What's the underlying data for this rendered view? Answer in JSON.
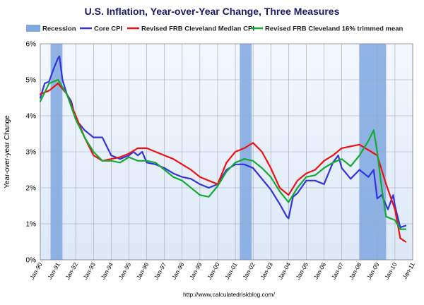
{
  "chart_data": {
    "type": "line",
    "title": "U.S. Inflation, Year-over-Year Change, Three Measures",
    "ylabel": "Year-over-year Change",
    "xlabel": "",
    "source": "http://www.calculatedriskblog.com/",
    "xlim": [
      1990.0,
      2011.0
    ],
    "ylim": [
      0,
      6
    ],
    "yticks": [
      {
        "v": 0,
        "label": "0%"
      },
      {
        "v": 1,
        "label": "1%"
      },
      {
        "v": 2,
        "label": "2%"
      },
      {
        "v": 3,
        "label": "3%"
      },
      {
        "v": 4,
        "label": "4%"
      },
      {
        "v": 5,
        "label": "5%"
      },
      {
        "v": 6,
        "label": "6%"
      }
    ],
    "xticks": [
      {
        "v": 1990,
        "label": "Jan-90"
      },
      {
        "v": 1991,
        "label": "Jan-91"
      },
      {
        "v": 1992,
        "label": "Jan-92"
      },
      {
        "v": 1993,
        "label": "Jan-93"
      },
      {
        "v": 1994,
        "label": "Jan-94"
      },
      {
        "v": 1995,
        "label": "Jan-95"
      },
      {
        "v": 1996,
        "label": "Jan-96"
      },
      {
        "v": 1997,
        "label": "Jan-97"
      },
      {
        "v": 1998,
        "label": "Jan-98"
      },
      {
        "v": 1999,
        "label": "Jan-99"
      },
      {
        "v": 2000,
        "label": "Jan-00"
      },
      {
        "v": 2001,
        "label": "Jan-01"
      },
      {
        "v": 2002,
        "label": "Jan-02"
      },
      {
        "v": 2003,
        "label": "Jan-03"
      },
      {
        "v": 2004,
        "label": "Jan-04"
      },
      {
        "v": 2005,
        "label": "Jan-05"
      },
      {
        "v": 2006,
        "label": "Jan-06"
      },
      {
        "v": 2007,
        "label": "Jan-07"
      },
      {
        "v": 2008,
        "label": "Jan-08"
      },
      {
        "v": 2009,
        "label": "Jan-09"
      },
      {
        "v": 2010,
        "label": "Jan-10"
      },
      {
        "v": 2011,
        "label": "Jan-11"
      }
    ],
    "grid": true,
    "legend_position": "top",
    "legend": [
      {
        "label": "Recession",
        "kind": "band",
        "color": "#7fa7e0"
      },
      {
        "label": "Core CPI",
        "kind": "line",
        "color": "#3333dd"
      },
      {
        "label": "Revised FRB Cleveland Median CPI",
        "kind": "line",
        "color": "#ee1111"
      },
      {
        "label": "Revised FRB Cleveland 16% trimmed mean",
        "kind": "line",
        "color": "#11aa33"
      }
    ],
    "recessions": [
      {
        "start": 1990.58,
        "end": 1991.25
      },
      {
        "start": 2001.25,
        "end": 2001.92
      },
      {
        "start": 2008.0,
        "end": 2009.5
      }
    ],
    "series": [
      {
        "name": "Core CPI",
        "color": "#3333dd",
        "x": [
          1990.0,
          1990.25,
          1990.5,
          1990.75,
          1991.0,
          1991.08,
          1991.25,
          1991.5,
          1991.75,
          1992.0,
          1992.5,
          1993.0,
          1993.5,
          1994.0,
          1994.5,
          1995.0,
          1995.25,
          1995.5,
          1995.75,
          1996.0,
          1996.5,
          1997.0,
          1997.5,
          1998.0,
          1998.5,
          1999.0,
          1999.5,
          2000.0,
          2000.5,
          2001.0,
          2001.5,
          2002.0,
          2002.5,
          2003.0,
          2003.5,
          2003.9,
          2004.0,
          2004.25,
          2004.5,
          2005.0,
          2005.5,
          2006.0,
          2006.5,
          2006.8,
          2007.0,
          2007.5,
          2008.0,
          2008.5,
          2008.8,
          2009.0,
          2009.25,
          2009.6,
          2009.9,
          2010.0,
          2010.3,
          2010.6
        ],
        "y": [
          4.5,
          4.9,
          4.95,
          5.3,
          5.6,
          5.65,
          5.0,
          4.6,
          4.4,
          3.9,
          3.6,
          3.4,
          3.4,
          2.9,
          2.8,
          2.9,
          3.0,
          2.9,
          3.0,
          2.7,
          2.65,
          2.55,
          2.4,
          2.3,
          2.25,
          2.1,
          2.0,
          2.1,
          2.5,
          2.65,
          2.65,
          2.55,
          2.25,
          1.95,
          1.55,
          1.2,
          1.15,
          1.75,
          1.85,
          2.2,
          2.2,
          2.1,
          2.7,
          2.9,
          2.55,
          2.25,
          2.5,
          2.3,
          2.5,
          1.7,
          1.8,
          1.4,
          1.8,
          1.5,
          0.9,
          0.95
        ]
      },
      {
        "name": "Revised FRB Cleveland Median CPI",
        "color": "#ee1111",
        "x": [
          1990.0,
          1990.5,
          1991.0,
          1991.5,
          1992.0,
          1992.5,
          1993.0,
          1993.5,
          1994.0,
          1994.5,
          1995.0,
          1995.5,
          1996.0,
          1996.5,
          1997.0,
          1997.5,
          1998.0,
          1998.5,
          1999.0,
          1999.5,
          2000.0,
          2000.5,
          2001.0,
          2001.5,
          2002.0,
          2002.5,
          2003.0,
          2003.5,
          2004.0,
          2004.5,
          2005.0,
          2005.5,
          2006.0,
          2006.5,
          2007.0,
          2007.5,
          2008.0,
          2008.5,
          2009.0,
          2009.5,
          2010.0,
          2010.3,
          2010.6
        ],
        "y": [
          4.6,
          4.7,
          4.9,
          4.6,
          4.0,
          3.4,
          2.9,
          2.75,
          2.8,
          2.85,
          2.95,
          3.1,
          3.1,
          3.0,
          2.9,
          2.8,
          2.65,
          2.5,
          2.3,
          2.2,
          2.1,
          2.7,
          3.0,
          3.1,
          3.25,
          3.0,
          2.55,
          2.0,
          1.8,
          2.2,
          2.4,
          2.5,
          2.75,
          2.9,
          3.1,
          3.15,
          3.2,
          3.05,
          2.9,
          2.1,
          1.4,
          0.6,
          0.5
        ]
      },
      {
        "name": "Revised FRB Cleveland 16% trimmed mean",
        "color": "#11aa33",
        "x": [
          1990.0,
          1990.5,
          1991.0,
          1991.5,
          1992.0,
          1992.5,
          1993.0,
          1993.5,
          1994.0,
          1994.5,
          1995.0,
          1995.5,
          1996.0,
          1996.5,
          1997.0,
          1997.5,
          1998.0,
          1998.5,
          1999.0,
          1999.5,
          2000.0,
          2000.5,
          2001.0,
          2001.5,
          2002.0,
          2002.5,
          2003.0,
          2003.5,
          2004.0,
          2004.5,
          2005.0,
          2005.5,
          2006.0,
          2006.5,
          2007.0,
          2007.5,
          2008.0,
          2008.5,
          2008.8,
          2009.0,
          2009.25,
          2009.5,
          2010.0,
          2010.3,
          2010.6
        ],
        "y": [
          4.4,
          4.9,
          5.0,
          4.6,
          3.9,
          3.4,
          3.0,
          2.75,
          2.75,
          2.7,
          2.85,
          2.75,
          2.75,
          2.7,
          2.5,
          2.3,
          2.2,
          2.0,
          1.8,
          1.75,
          2.05,
          2.45,
          2.7,
          2.8,
          2.75,
          2.55,
          2.3,
          1.9,
          1.6,
          2.0,
          2.3,
          2.35,
          2.55,
          2.7,
          2.8,
          2.6,
          2.9,
          3.3,
          3.6,
          3.0,
          2.0,
          1.2,
          1.1,
          0.85,
          0.85
        ]
      }
    ]
  }
}
